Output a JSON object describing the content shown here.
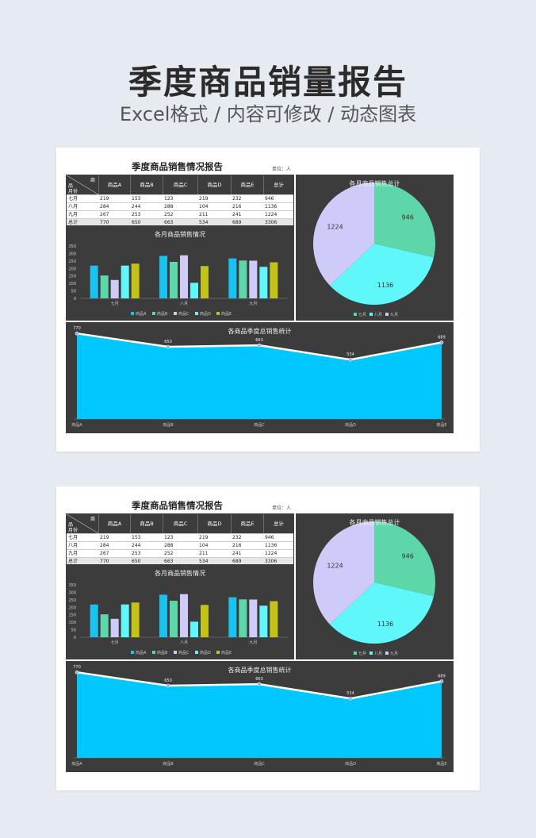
{
  "header": {
    "title": "季度商品销量报告",
    "subtitle": "Excel格式 / 内容可修改 / 动态图表"
  },
  "sheet": {
    "title": "季度商品销售情况报告",
    "unit": "单位：人",
    "table": {
      "diag_top": "商",
      "diag_mid": "品",
      "diag_bot": "月份",
      "columns": [
        "商品A",
        "商品B",
        "商品C",
        "商品D",
        "商品E",
        "总计"
      ],
      "rows": [
        {
          "label": "七月",
          "values": [
            "219",
            "153",
            "123",
            "219",
            "232",
            "946"
          ]
        },
        {
          "label": "八月",
          "values": [
            "284",
            "244",
            "288",
            "104",
            "216",
            "1136"
          ]
        },
        {
          "label": "九月",
          "values": [
            "267",
            "253",
            "252",
            "211",
            "241",
            "1224"
          ]
        },
        {
          "label": "总计",
          "values": [
            "770",
            "650",
            "663",
            "534",
            "689",
            "3306"
          ]
        }
      ]
    }
  },
  "colors": {
    "productA": "#18c3f2",
    "productB": "#5dd6aa",
    "productC": "#cfcbf8",
    "productD": "#5ff7f9",
    "productE": "#c3c21a",
    "area": "#00c8ff",
    "panel": "#3c3c3c"
  },
  "chart_data": [
    {
      "type": "bar",
      "title": "各月商品销售情况",
      "categories": [
        "七月",
        "八月",
        "九月"
      ],
      "ylim": [
        0,
        350
      ],
      "yticks": [
        "350",
        "300",
        "250",
        "200",
        "150",
        "100",
        "50",
        "0"
      ],
      "series": [
        {
          "name": "商品A",
          "values": [
            219,
            284,
            267
          ]
        },
        {
          "name": "商品B",
          "values": [
            153,
            244,
            253
          ]
        },
        {
          "name": "商品C",
          "values": [
            123,
            288,
            252
          ]
        },
        {
          "name": "商品D",
          "values": [
            219,
            104,
            211
          ]
        },
        {
          "name": "商品E",
          "values": [
            232,
            216,
            241
          ]
        }
      ],
      "legend": "bottom"
    },
    {
      "type": "pie",
      "title": "各月商品销售总计",
      "labels": [
        "七月",
        "八月",
        "九月"
      ],
      "values": [
        946,
        1136,
        1224
      ],
      "legend": "bottom"
    },
    {
      "type": "area",
      "title": "各商品季度总销售统计",
      "categories": [
        "商品A",
        "商品B",
        "商品C",
        "商品D",
        "商品E"
      ],
      "values": [
        770,
        650,
        663,
        534,
        689
      ],
      "ylim": [
        0,
        800
      ]
    }
  ]
}
